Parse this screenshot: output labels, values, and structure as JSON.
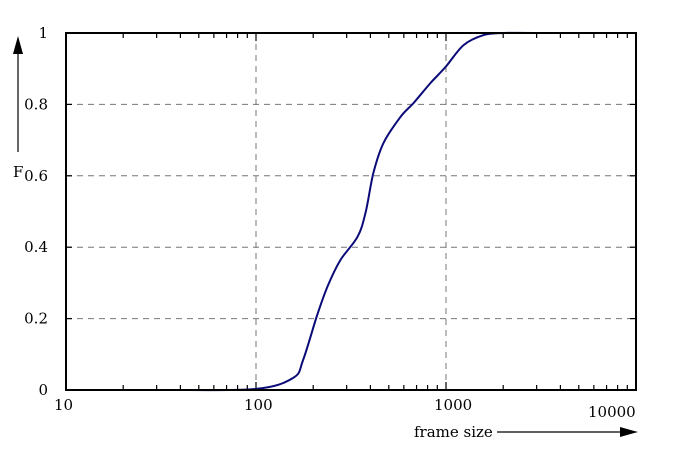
{
  "chart_data": {
    "type": "line",
    "title": "",
    "xlabel": "frame size",
    "ylabel": "F",
    "xscale": "log",
    "xlim": [
      10,
      10000
    ],
    "ylim": [
      0,
      1
    ],
    "xticks": [
      "10",
      "100",
      "1000",
      "10000"
    ],
    "yticks": [
      "0",
      "0.2",
      "0.4",
      "0.6",
      "0.8",
      "1"
    ],
    "grid": "dashed",
    "line_color": "#0a0a78",
    "series": [
      {
        "x": [
          35,
          100,
          157,
          177,
          210,
          238,
          278,
          342,
          377,
          415,
          469,
          576,
          675,
          829,
          995,
          1238,
          1578,
          2013,
          3155
        ],
        "y": [
          0,
          0.003,
          0.034,
          0.084,
          0.21,
          0.29,
          0.364,
          0.429,
          0.496,
          0.608,
          0.692,
          0.765,
          0.804,
          0.86,
          0.905,
          0.966,
          0.994,
          1.0,
          1.0
        ]
      }
    ]
  }
}
